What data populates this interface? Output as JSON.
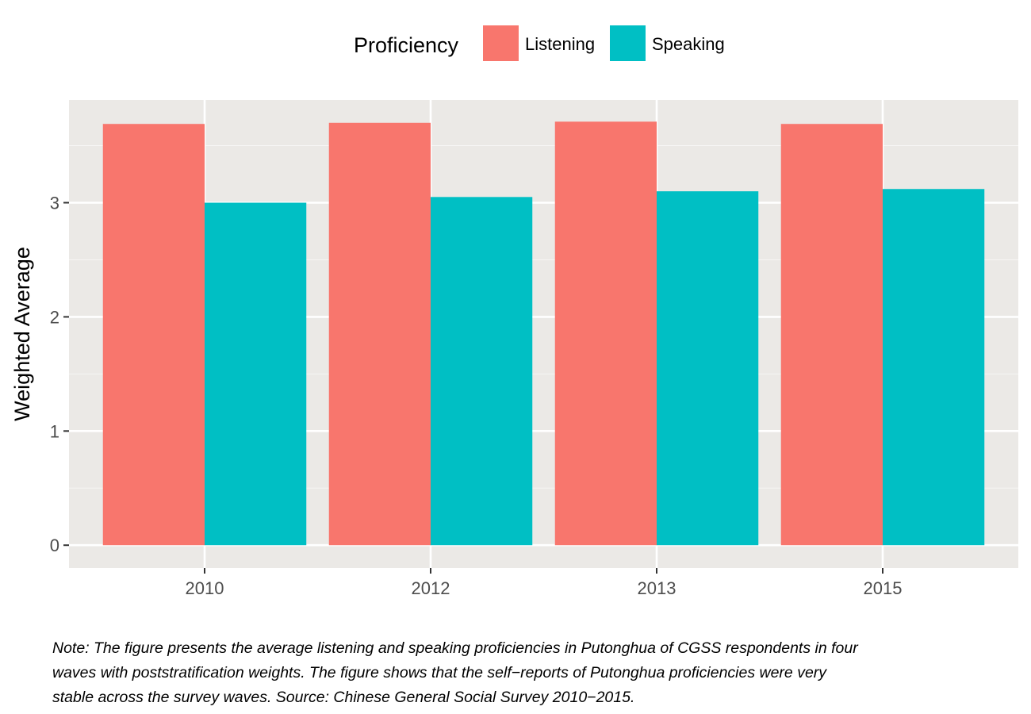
{
  "legend": {
    "title": "Proficiency"
  },
  "note": {
    "lines": [
      "Note: The figure presents the average listening and speaking proficiencies in Putonghua of CGSS respondents in four",
      "waves with poststratification weights. The figure shows that the self−reports of Putonghua proficiencies were very",
      "stable across the survey waves. Source: Chinese General Social Survey 2010−2015."
    ]
  },
  "chart_data": {
    "type": "bar",
    "categories": [
      "2010",
      "2012",
      "2013",
      "2015"
    ],
    "series": [
      {
        "name": "Listening",
        "color": "#F8766D",
        "values": [
          3.69,
          3.7,
          3.71,
          3.69
        ]
      },
      {
        "name": "Speaking",
        "color": "#00BFC4",
        "values": [
          3.0,
          3.05,
          3.1,
          3.12
        ]
      }
    ],
    "title": "",
    "xlabel": "",
    "ylabel": "Weighted Average",
    "ylim": [
      -0.2,
      3.9
    ],
    "yticks": [
      0,
      1,
      2,
      3
    ],
    "grid": true,
    "panel_background": "#EBE9E6",
    "legend_position": "top"
  }
}
